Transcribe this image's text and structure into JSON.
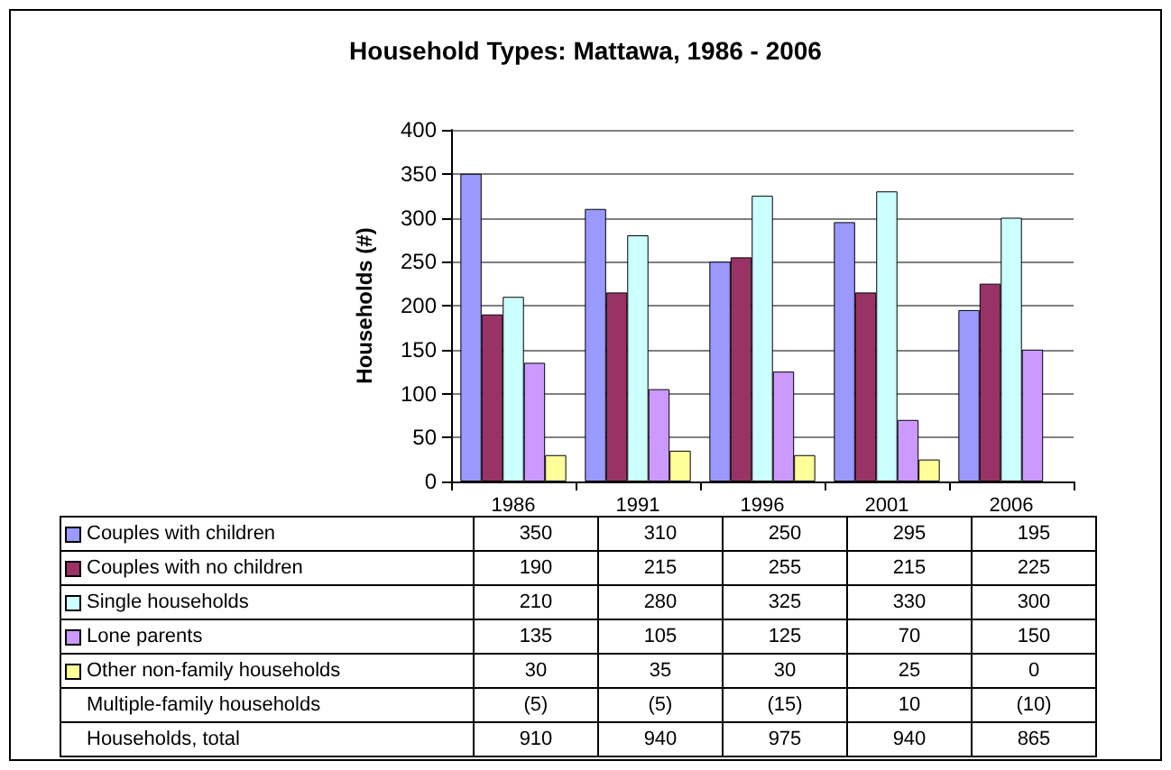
{
  "chart_data": {
    "type": "bar",
    "title": "Household Types: Mattawa, 1986 - 2006",
    "ylabel": "Households (#)",
    "categories": [
      "1986",
      "1991",
      "1996",
      "2001",
      "2006"
    ],
    "series": [
      {
        "name": "Couples with children",
        "color": "#9999ff",
        "values": [
          350,
          310,
          250,
          295,
          195
        ]
      },
      {
        "name": "Couples with no children",
        "color": "#993366",
        "values": [
          190,
          215,
          255,
          215,
          225
        ]
      },
      {
        "name": "Single households",
        "color": "#ccffff",
        "values": [
          210,
          280,
          325,
          330,
          300
        ]
      },
      {
        "name": "Lone parents",
        "color": "#cc99ff",
        "values": [
          135,
          105,
          125,
          70,
          150
        ]
      },
      {
        "name": "Other non-family households",
        "color": "#ffff99",
        "values": [
          30,
          35,
          30,
          25,
          0
        ]
      }
    ],
    "ylim": [
      0,
      400
    ],
    "yticks": [
      0,
      50,
      100,
      150,
      200,
      250,
      300,
      350,
      400
    ],
    "grid": "y",
    "legend": "bottom",
    "data_labels": true,
    "annotations": [
      "Multiple-family households",
      "(5)",
      "(5)",
      "(15)",
      "10",
      "(10)",
      "Households, total",
      "910",
      "940",
      "975",
      "940",
      "865"
    ]
  }
}
